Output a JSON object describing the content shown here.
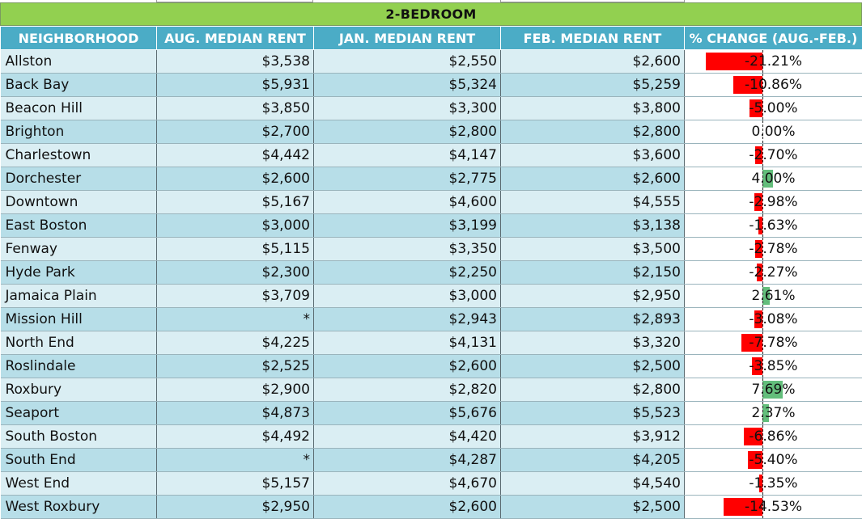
{
  "title": "2-BEDROOM",
  "headers": [
    "NEIGHBORHOOD",
    "AUG. MEDIAN RENT",
    "JAN. MEDIAN RENT",
    "FEB. MEDIAN RENT",
    "% CHANGE (AUG.-FEB.)"
  ],
  "colors": {
    "title_bg": "#92d050",
    "header_bg": "#4bacc6",
    "row_light": "#daeef3",
    "row_dark": "#b7dee8",
    "bar_negative": "#ff0000",
    "bar_positive": "#63be7b"
  },
  "rows": [
    {
      "neighborhood": "Allston",
      "aug": "$3,538",
      "jan": "$2,550",
      "feb": "$2,600",
      "change": "-21.21%",
      "change_value": -21.21
    },
    {
      "neighborhood": "Back Bay",
      "aug": "$5,931",
      "jan": "$5,324",
      "feb": "$5,259",
      "change": "-10.86%",
      "change_value": -10.86
    },
    {
      "neighborhood": "Beacon Hill",
      "aug": "$3,850",
      "jan": "$3,300",
      "feb": "$3,800",
      "change": "-5.00%",
      "change_value": -5.0
    },
    {
      "neighborhood": "Brighton",
      "aug": "$2,700",
      "jan": "$2,800",
      "feb": "$2,800",
      "change": "0.00%",
      "change_value": 0.0
    },
    {
      "neighborhood": "Charlestown",
      "aug": "$4,442",
      "jan": "$4,147",
      "feb": "$3,600",
      "change": "-2.70%",
      "change_value": -2.7
    },
    {
      "neighborhood": "Dorchester",
      "aug": "$2,600",
      "jan": "$2,775",
      "feb": "$2,600",
      "change": "4.00%",
      "change_value": 4.0
    },
    {
      "neighborhood": "Downtown",
      "aug": "$5,167",
      "jan": "$4,600",
      "feb": "$4,555",
      "change": "-2.98%",
      "change_value": -2.98
    },
    {
      "neighborhood": "East Boston",
      "aug": "$3,000",
      "jan": "$3,199",
      "feb": "$3,138",
      "change": "-1.63%",
      "change_value": -1.63
    },
    {
      "neighborhood": "Fenway",
      "aug": "$5,115",
      "jan": "$3,350",
      "feb": "$3,500",
      "change": "-2.78%",
      "change_value": -2.78
    },
    {
      "neighborhood": "Hyde Park",
      "aug": "$2,300",
      "jan": "$2,250",
      "feb": "$2,150",
      "change": "-2.27%",
      "change_value": -2.27
    },
    {
      "neighborhood": "Jamaica Plain",
      "aug": "$3,709",
      "jan": "$3,000",
      "feb": "$2,950",
      "change": "2.61%",
      "change_value": 2.61
    },
    {
      "neighborhood": "Mission Hill",
      "aug": "*",
      "jan": "$2,943",
      "feb": "$2,893",
      "change": "-3.08%",
      "change_value": -3.08
    },
    {
      "neighborhood": "North End",
      "aug": "$4,225",
      "jan": "$4,131",
      "feb": "$3,320",
      "change": "-7.78%",
      "change_value": -7.78
    },
    {
      "neighborhood": "Roslindale",
      "aug": "$2,525",
      "jan": "$2,600",
      "feb": "$2,500",
      "change": "-3.85%",
      "change_value": -3.85
    },
    {
      "neighborhood": "Roxbury",
      "aug": "$2,900",
      "jan": "$2,820",
      "feb": "$2,800",
      "change": "7.69%",
      "change_value": 7.69
    },
    {
      "neighborhood": "Seaport",
      "aug": "$4,873",
      "jan": "$5,676",
      "feb": "$5,523",
      "change": "2.37%",
      "change_value": 2.37
    },
    {
      "neighborhood": "South Boston",
      "aug": "$4,492",
      "jan": "$4,420",
      "feb": "$3,912",
      "change": "-6.86%",
      "change_value": -6.86
    },
    {
      "neighborhood": "South End",
      "aug": "*",
      "jan": "$4,287",
      "feb": "$4,205",
      "change": "-5.40%",
      "change_value": -5.4
    },
    {
      "neighborhood": "West End",
      "aug": "$5,157",
      "jan": "$4,670",
      "feb": "$4,540",
      "change": "-1.35%",
      "change_value": -1.35
    },
    {
      "neighborhood": "West Roxbury",
      "aug": "$2,950",
      "jan": "$2,600",
      "feb": "$2,500",
      "change": "-14.53%",
      "change_value": -14.53
    }
  ]
}
